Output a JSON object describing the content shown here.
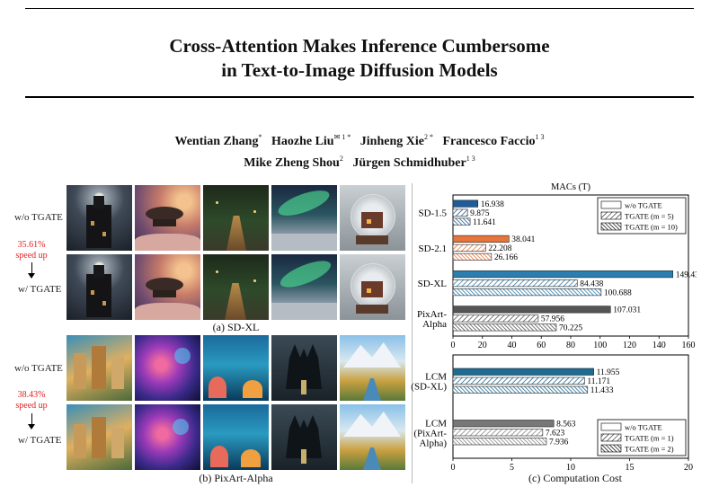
{
  "paper": {
    "title_line1": "Cross-Attention Makes Inference Cumbersome",
    "title_line2": "in Text-to-Image Diffusion Models",
    "authors": [
      {
        "name": "Wentian Zhang",
        "sup": "*"
      },
      {
        "name": "Haozhe Liu",
        "sup": "✉ 1 *"
      },
      {
        "name": "Jinheng Xie",
        "sup": "2 *"
      },
      {
        "name": "Francesco Faccio",
        "sup": "1 3"
      },
      {
        "name": "Mike Zheng Shou",
        "sup": "2"
      },
      {
        "name": "Jürgen Schmidhuber",
        "sup": "1 3"
      }
    ]
  },
  "figure": {
    "panel_a": {
      "row_top_label": "w/o TGATE",
      "row_bottom_label": "w/ TGATE",
      "speedup_line1": "35.61%",
      "speedup_line2": "speed up",
      "caption": "(a) SD-XL"
    },
    "panel_b": {
      "row_top_label": "w/o TGATE",
      "row_bottom_label": "w/ TGATE",
      "speedup_line1": "38.43%",
      "speedup_line2": "speed up",
      "caption": "(b) PixArt-Alpha"
    },
    "panel_c": {
      "caption": "(c) Computation Cost"
    },
    "colors": {
      "speedup_text": "#e02020",
      "sd15": "#1f5c99",
      "sd21": "#e8743b",
      "sdxl": "#2b7fb0",
      "pixart": "#555555",
      "lcm_sdxl": "#1e6b94",
      "lcm_pixart": "#777777"
    }
  },
  "chart_data": [
    {
      "type": "bar",
      "orientation": "horizontal",
      "title": "MACs (T)",
      "xlim": [
        0,
        160
      ],
      "xticks": [
        0,
        20,
        40,
        60,
        80,
        100,
        120,
        140,
        160
      ],
      "categories": [
        "SD-1.5",
        "SD-2.1",
        "SD-XL",
        "PixArt-\nAlpha"
      ],
      "series": [
        {
          "name": "w/o TGATE",
          "values": [
            16.938,
            38.041,
            149.438,
            107.031
          ]
        },
        {
          "name": "TGATE (m = 5)",
          "values": [
            9.875,
            22.208,
            84.438,
            57.956
          ]
        },
        {
          "name": "TGATE (m = 10)",
          "values": [
            11.641,
            26.166,
            100.688,
            70.225
          ]
        }
      ],
      "legend_position": "top-right",
      "grid": false
    },
    {
      "type": "bar",
      "orientation": "horizontal",
      "xlim": [
        0,
        20
      ],
      "xticks": [
        0,
        5,
        10,
        15,
        20
      ],
      "categories": [
        "LCM\n(SD-XL)",
        "LCM\n(PixArt-\nAlpha)"
      ],
      "series": [
        {
          "name": "w/o TGATE",
          "values": [
            11.955,
            8.563
          ]
        },
        {
          "name": "TGATE (m = 1)",
          "values": [
            11.171,
            7.623
          ]
        },
        {
          "name": "TGATE (m = 2)",
          "values": [
            11.433,
            7.936
          ]
        }
      ],
      "xlabel": "(c) Computation Cost",
      "legend_position": "bottom-right",
      "grid": false
    }
  ]
}
